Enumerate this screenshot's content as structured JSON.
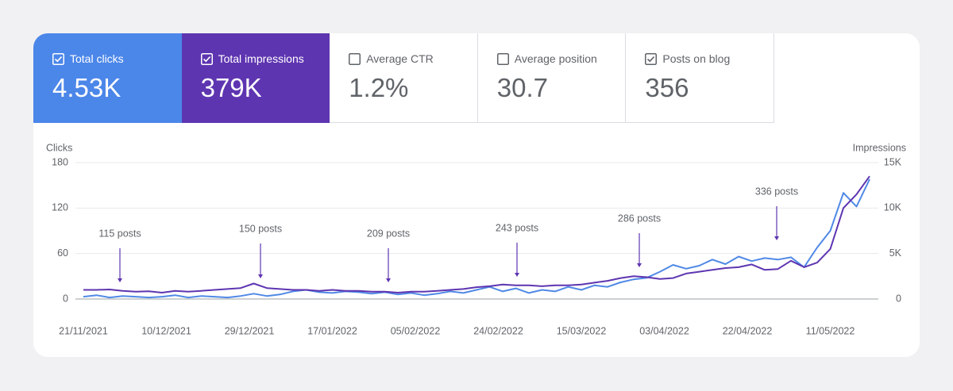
{
  "metrics": [
    {
      "label": "Total clicks",
      "value": "4.53K",
      "checked": true,
      "color": "#4b86e9"
    },
    {
      "label": "Total impressions",
      "value": "379K",
      "checked": true,
      "color": "#5e35b1"
    },
    {
      "label": "Average CTR",
      "value": "1.2%",
      "checked": false
    },
    {
      "label": "Average position",
      "value": "30.7",
      "checked": false
    },
    {
      "label": "Posts on blog",
      "value": "356",
      "checked": true
    }
  ],
  "chart_data": {
    "type": "line",
    "ylabel": "Clicks",
    "y2label": "Impressions",
    "x": [
      "21/11/2021",
      "24/11/2021",
      "27/11/2021",
      "30/11/2021",
      "03/12/2021",
      "06/12/2021",
      "09/12/2021",
      "12/12/2021",
      "15/12/2021",
      "18/12/2021",
      "21/12/2021",
      "24/12/2021",
      "27/12/2021",
      "30/12/2021",
      "02/01/2022",
      "05/01/2022",
      "08/01/2022",
      "11/01/2022",
      "14/01/2022",
      "17/01/2022",
      "20/01/2022",
      "23/01/2022",
      "26/01/2022",
      "29/01/2022",
      "01/02/2022",
      "04/02/2022",
      "07/02/2022",
      "10/02/2022",
      "13/02/2022",
      "16/02/2022",
      "19/02/2022",
      "22/02/2022",
      "25/02/2022",
      "28/02/2022",
      "03/03/2022",
      "06/03/2022",
      "09/03/2022",
      "12/03/2022",
      "15/03/2022",
      "18/03/2022",
      "21/03/2022",
      "24/03/2022",
      "27/03/2022",
      "30/03/2022",
      "02/04/2022",
      "05/04/2022",
      "08/04/2022",
      "11/04/2022",
      "14/04/2022",
      "17/04/2022",
      "20/04/2022",
      "23/04/2022",
      "26/04/2022",
      "29/04/2022",
      "02/05/2022",
      "05/05/2022",
      "08/05/2022",
      "11/05/2022",
      "14/05/2022",
      "17/05/2022",
      "20/05/2022"
    ],
    "series": [
      {
        "name": "Clicks",
        "color": "#5089e6",
        "values": [
          3,
          5,
          2,
          4,
          3,
          2,
          3,
          5,
          2,
          4,
          3,
          2,
          4,
          7,
          4,
          6,
          10,
          12,
          9,
          8,
          10,
          9,
          7,
          9,
          6,
          8,
          5,
          7,
          10,
          8,
          12,
          16,
          10,
          14,
          8,
          12,
          10,
          16,
          12,
          18,
          16,
          22,
          26,
          28,
          36,
          45,
          40,
          44,
          52,
          46,
          56,
          50,
          54,
          52,
          55,
          42,
          68,
          90,
          140,
          122,
          158
        ]
      },
      {
        "name": "Impressions",
        "color": "#5e35b1",
        "axis": "y2",
        "values": [
          1000,
          1000,
          1050,
          900,
          800,
          850,
          700,
          900,
          800,
          900,
          1000,
          1100,
          1200,
          1700,
          1200,
          1100,
          1000,
          1000,
          900,
          1000,
          900,
          900,
          800,
          800,
          700,
          800,
          800,
          900,
          1000,
          1100,
          1300,
          1400,
          1600,
          1500,
          1500,
          1400,
          1500,
          1500,
          1600,
          1800,
          2000,
          2300,
          2500,
          2400,
          2200,
          2300,
          2800,
          3000,
          3200,
          3400,
          3500,
          3800,
          3200,
          3300,
          4200,
          3500,
          4000,
          5500,
          10000,
          11500,
          13500
        ]
      }
    ],
    "xlim": [
      "20/11/2021",
      "22/05/2022"
    ],
    "xticks": [
      "21/11/2021",
      "10/12/2021",
      "29/12/2021",
      "17/01/2022",
      "05/02/2022",
      "24/02/2022",
      "15/03/2022",
      "03/04/2022",
      "22/04/2022",
      "11/05/2022"
    ],
    "ylim": [
      0,
      180
    ],
    "yticks": [
      0,
      60,
      120,
      180
    ],
    "y2lim": [
      0,
      15000
    ],
    "y2ticks": [
      0,
      {
        "value": 5000,
        "label": "5K"
      },
      {
        "value": 10000,
        "label": "10K"
      },
      {
        "value": 15000,
        "label": "15K"
      }
    ],
    "grid": true,
    "annotations": [
      "115 posts",
      "150 posts",
      "209 posts",
      "243 posts",
      "286 posts",
      "336 posts"
    ]
  }
}
